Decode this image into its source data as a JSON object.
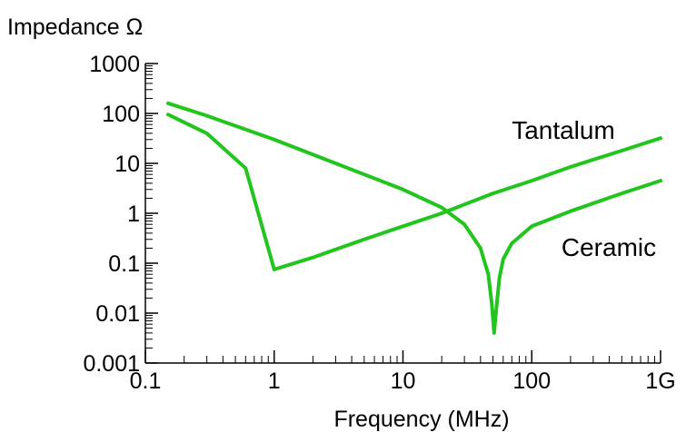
{
  "chart_data": {
    "type": "line",
    "y_title": "Impedance Ω",
    "x_title": "Frequency (MHz)",
    "x_scale": "log",
    "y_scale": "log",
    "xlim": [
      0.1,
      1000
    ],
    "ylim": [
      0.001,
      1000
    ],
    "x_tick_labels": [
      "0.1",
      "1",
      "10",
      "100",
      "1G"
    ],
    "y_tick_labels": [
      "1000",
      "100",
      "10",
      "1",
      "0.1",
      "0.01",
      "0.001"
    ],
    "grid": false,
    "line_color": "#22c41e",
    "series": [
      {
        "name": "Tantalum",
        "x": [
          0.15,
          0.3,
          0.6,
          1.0,
          2,
          5,
          10,
          20,
          50,
          100,
          200,
          500,
          1000
        ],
        "y": [
          95,
          40,
          8,
          0.075,
          0.13,
          0.3,
          0.55,
          1.0,
          2.5,
          4.5,
          8.5,
          18,
          32
        ]
      },
      {
        "name": "Ceramic",
        "x": [
          0.15,
          0.3,
          1,
          3,
          10,
          20,
          30,
          40,
          46,
          49,
          51,
          53,
          56,
          60,
          70,
          100,
          200,
          500,
          1000
        ],
        "y": [
          160,
          90,
          30,
          10,
          3,
          1.3,
          0.6,
          0.2,
          0.06,
          0.015,
          0.004,
          0.012,
          0.05,
          0.12,
          0.25,
          0.55,
          1.1,
          2.5,
          4.5
        ]
      }
    ]
  }
}
